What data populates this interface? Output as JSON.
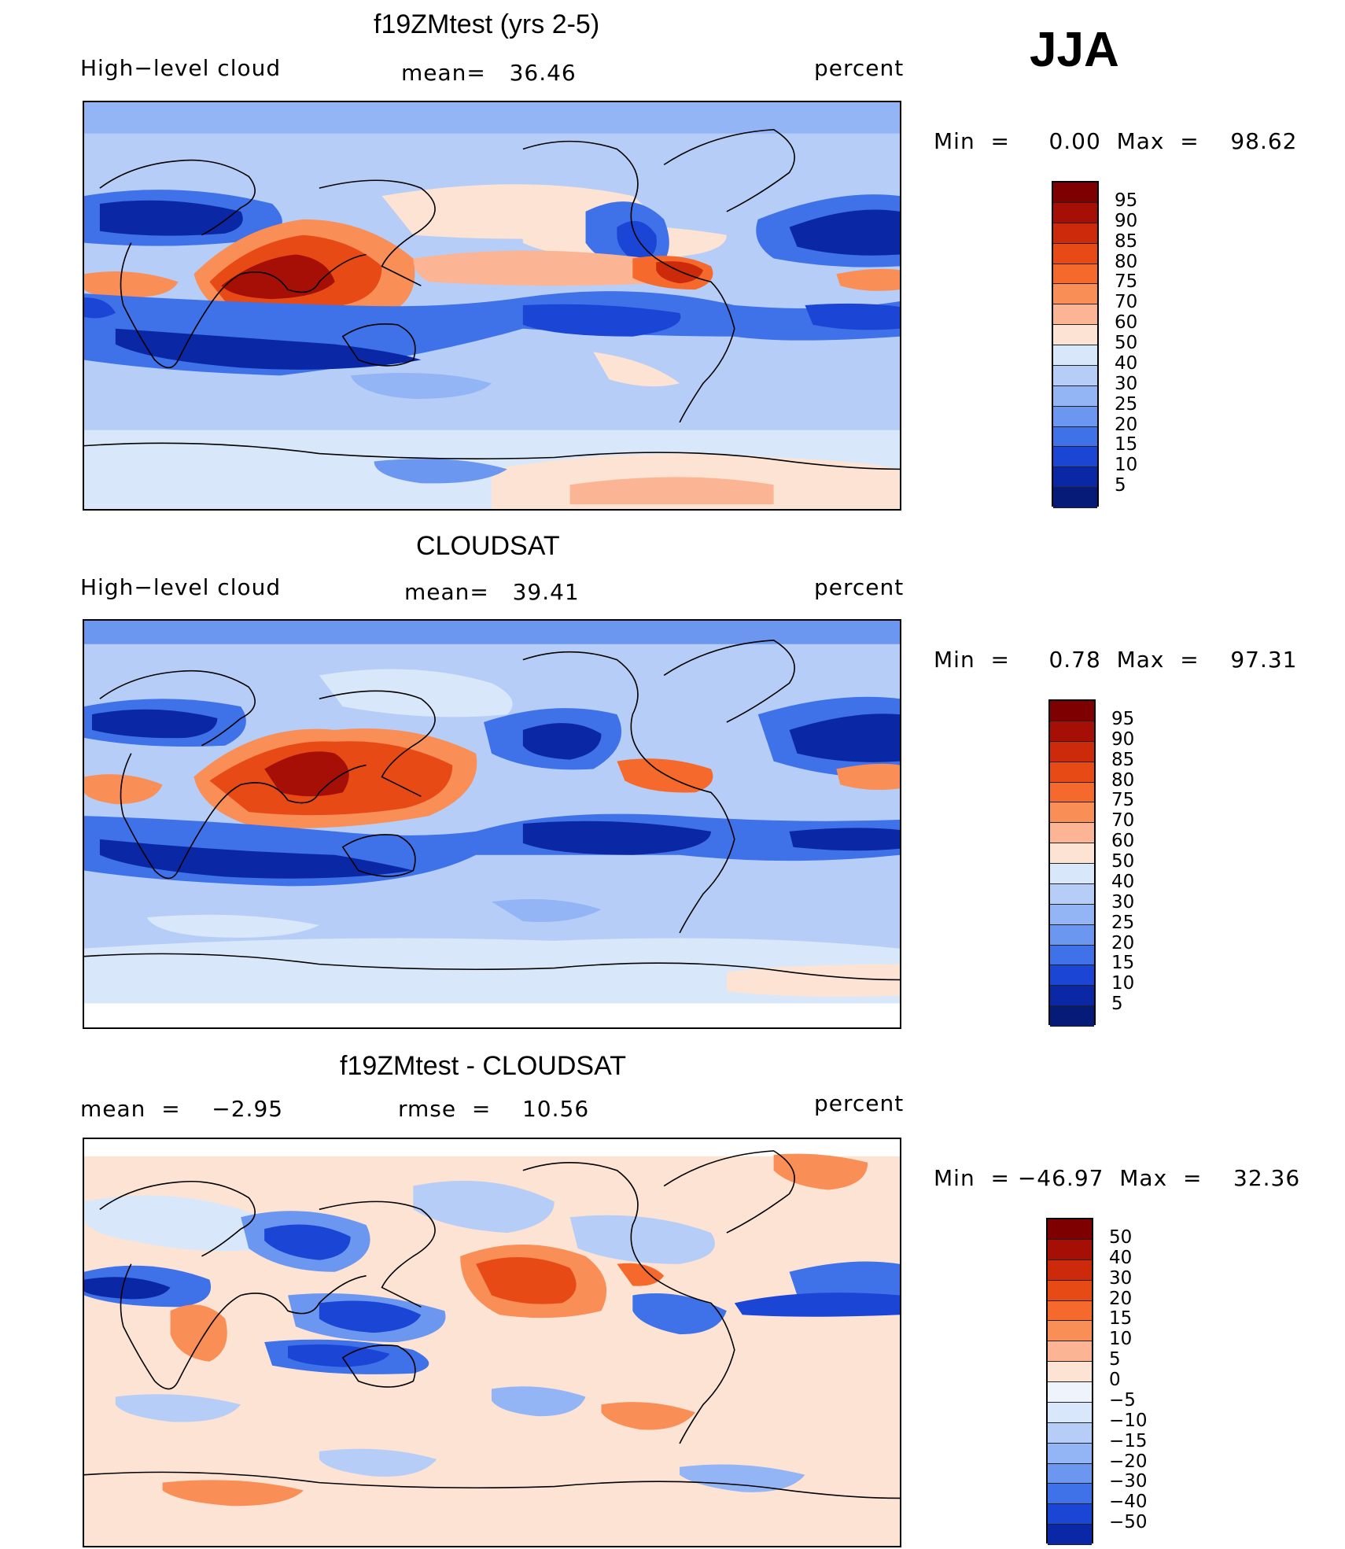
{
  "season": "JJA",
  "panels": [
    {
      "title": "f19ZMtest (yrs 2-5)",
      "left_label": "High−level cloud",
      "center_label": "mean=   36.46",
      "right_label": "percent",
      "stats": "Min  =     0.00  Max  =    98.62",
      "colorbar": {
        "ticks": [
          "95",
          "90",
          "85",
          "80",
          "75",
          "70",
          "60",
          "50",
          "40",
          "30",
          "25",
          "20",
          "15",
          "10",
          "5"
        ],
        "colors": [
          "#7f0000",
          "#a50f05",
          "#cc2a0a",
          "#e84a16",
          "#f56a2c",
          "#f98e57",
          "#fbb594",
          "#fde3d3",
          "#d9e7fa",
          "#b6cef7",
          "#93b5f6",
          "#6b97f0",
          "#3f71e8",
          "#1b45d4",
          "#0a28a6",
          "#061a78"
        ]
      }
    },
    {
      "title": "CLOUDSAT",
      "left_label": "High−level cloud",
      "center_label": "mean=   39.41",
      "right_label": "percent",
      "stats": "Min  =     0.78  Max  =    97.31",
      "colorbar": {
        "ticks": [
          "95",
          "90",
          "85",
          "80",
          "75",
          "70",
          "60",
          "50",
          "40",
          "30",
          "25",
          "20",
          "15",
          "10",
          "5"
        ],
        "colors": [
          "#7f0000",
          "#a50f05",
          "#cc2a0a",
          "#e84a16",
          "#f56a2c",
          "#f98e57",
          "#fbb594",
          "#fde3d3",
          "#d9e7fa",
          "#b6cef7",
          "#93b5f6",
          "#6b97f0",
          "#3f71e8",
          "#1b45d4",
          "#0a28a6",
          "#061a78"
        ]
      }
    },
    {
      "title": "f19ZMtest - CLOUDSAT",
      "left_label": "mean  =    −2.95",
      "center_label": "rmse  =    10.56",
      "right_label": "percent",
      "stats": "Min  = −46.97  Max  =    32.36",
      "colorbar": {
        "ticks": [
          "50",
          "40",
          "30",
          "20",
          "15",
          "10",
          "5",
          "0",
          "−5",
          "−10",
          "−15",
          "−20",
          "−30",
          "−40",
          "−50"
        ],
        "colors": [
          "#7f0000",
          "#a50f05",
          "#cc2a0a",
          "#e84a16",
          "#f56a2c",
          "#f98e57",
          "#fbb594",
          "#fde3d3",
          "#eef3fc",
          "#d9e7fa",
          "#b6cef7",
          "#93b5f6",
          "#6b97f0",
          "#3f71e8",
          "#1b45d4",
          "#0a28a6"
        ]
      }
    }
  ]
}
